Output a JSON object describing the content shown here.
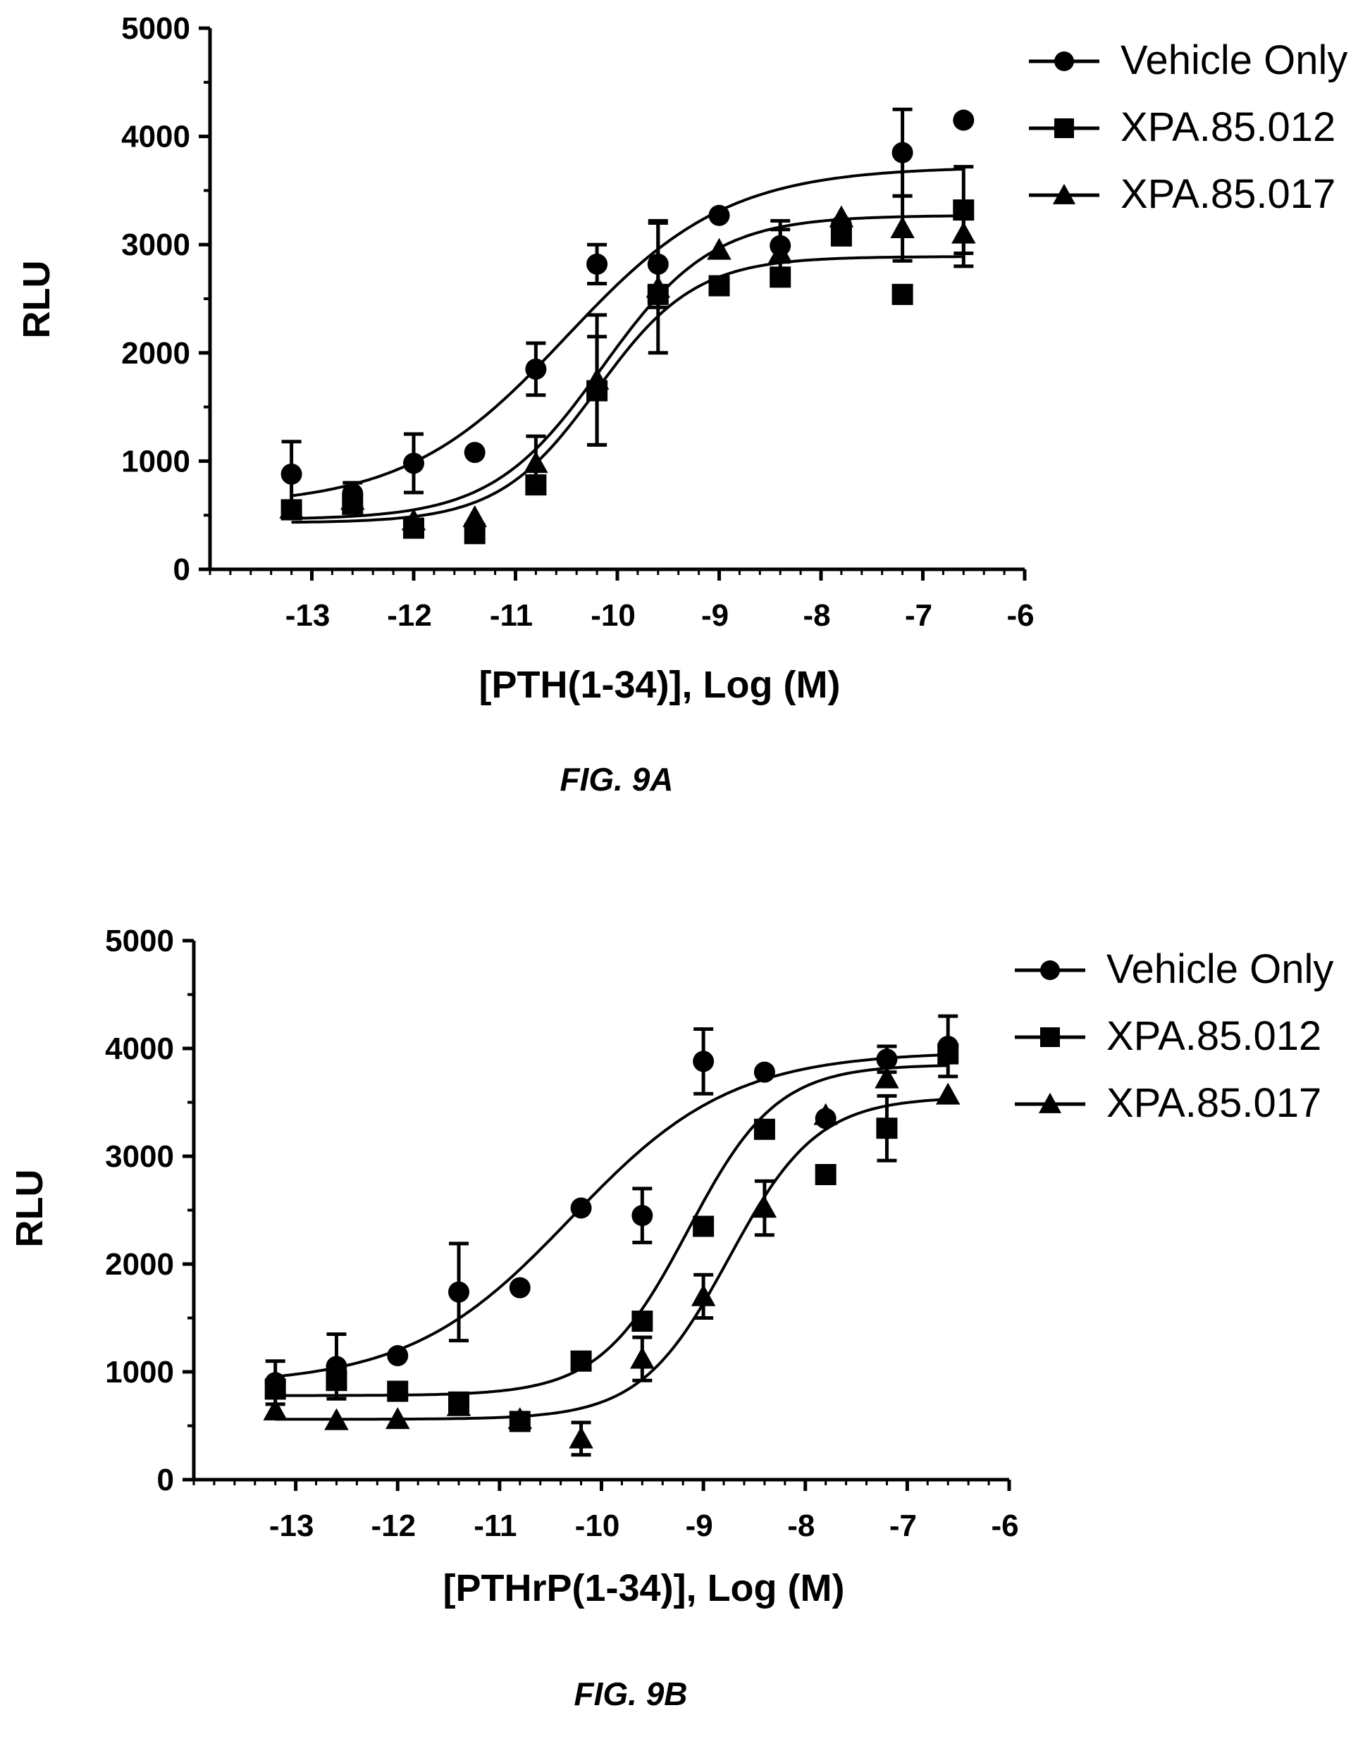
{
  "chart_data": [
    {
      "type": "scatter",
      "caption": "FIG. 9A",
      "xlabel": "[PTH(1-34)], Log (M)",
      "ylabel": "RLU",
      "xlim": [
        -14,
        -6
      ],
      "ylim": [
        0,
        5000
      ],
      "xticks": [
        -13,
        -12,
        -11,
        -10,
        -9,
        -8,
        -7,
        -6
      ],
      "yticks": [
        0,
        1000,
        2000,
        3000,
        4000,
        5000
      ],
      "grid": false,
      "legend": "top-right",
      "series": [
        {
          "name": "Vehicle Only",
          "marker": "circle",
          "x": [
            -13.2,
            -12.6,
            -12.0,
            -11.4,
            -10.8,
            -10.2,
            -9.6,
            -9.0,
            -8.4,
            -7.8,
            -7.2,
            -6.6
          ],
          "y": [
            880,
            700,
            980,
            1080,
            1850,
            2820,
            2820,
            3270,
            2990,
            3180,
            3850,
            4150
          ],
          "err": [
            300,
            100,
            270,
            0,
            240,
            180,
            400,
            0,
            150,
            0,
            400,
            0
          ],
          "fit": {
            "bottom": 580,
            "top": 3720,
            "ec50_log": -10.5,
            "hill": 0.55
          }
        },
        {
          "name": "XPA.85.012",
          "marker": "square",
          "x": [
            -13.2,
            -12.6,
            -12.0,
            -11.4,
            -10.8,
            -10.2,
            -9.6,
            -9.0,
            -8.4,
            -7.8,
            -7.2,
            -6.6
          ],
          "y": [
            550,
            600,
            380,
            330,
            780,
            1650,
            2540,
            2620,
            2700,
            3080,
            2540,
            3320
          ],
          "err": [
            0,
            0,
            0,
            0,
            0,
            500,
            0,
            0,
            0,
            0,
            0,
            400
          ],
          "fit": {
            "bottom": 460,
            "top": 3270,
            "ec50_log": -10.15,
            "hill": 0.8
          }
        },
        {
          "name": "XPA.85.017",
          "marker": "triangle",
          "x": [
            -13.2,
            -12.6,
            -12.0,
            -11.4,
            -10.8,
            -10.2,
            -9.6,
            -9.0,
            -8.4,
            -7.8,
            -7.2,
            -6.6
          ],
          "y": [
            560,
            640,
            450,
            480,
            980,
            1750,
            2600,
            2950,
            2920,
            3250,
            3150,
            3100
          ],
          "err": [
            0,
            0,
            0,
            0,
            250,
            600,
            600,
            0,
            300,
            0,
            300,
            300
          ],
          "fit": {
            "bottom": 430,
            "top": 2890,
            "ec50_log": -10.2,
            "hill": 0.9
          }
        }
      ]
    },
    {
      "type": "scatter",
      "caption": "FIG. 9B",
      "xlabel": "[PTHrP(1-34)], Log (M)",
      "ylabel": "RLU",
      "xlim": [
        -14,
        -6
      ],
      "ylim": [
        0,
        5000
      ],
      "xticks": [
        -13,
        -12,
        -11,
        -10,
        -9,
        -8,
        -7,
        -6
      ],
      "yticks": [
        0,
        1000,
        2000,
        3000,
        4000,
        5000
      ],
      "grid": false,
      "legend": "top-right",
      "series": [
        {
          "name": "Vehicle Only",
          "marker": "circle",
          "x": [
            -13.2,
            -12.6,
            -12.0,
            -11.4,
            -10.8,
            -10.2,
            -9.6,
            -9.0,
            -8.4,
            -7.8,
            -7.2,
            -6.6
          ],
          "y": [
            900,
            1050,
            1150,
            1740,
            1780,
            2520,
            2450,
            3880,
            3780,
            3350,
            3900,
            4020
          ],
          "err": [
            200,
            300,
            0,
            450,
            0,
            0,
            250,
            300,
            0,
            0,
            120,
            280
          ],
          "fit": {
            "bottom": 880,
            "top": 3970,
            "ec50_log": -10.3,
            "hill": 0.55
          }
        },
        {
          "name": "XPA.85.012",
          "marker": "square",
          "x": [
            -13.2,
            -12.6,
            -12.0,
            -11.4,
            -10.8,
            -10.2,
            -9.6,
            -9.0,
            -8.4,
            -7.8,
            -7.2,
            -6.6
          ],
          "y": [
            840,
            920,
            820,
            720,
            540,
            1100,
            1470,
            2350,
            3250,
            2830,
            3260,
            3950
          ],
          "err": [
            0,
            0,
            0,
            0,
            0,
            0,
            0,
            0,
            0,
            0,
            300,
            0
          ],
          "fit": {
            "bottom": 780,
            "top": 3850,
            "ec50_log": -9.15,
            "hill": 1.0
          }
        },
        {
          "name": "XPA.85.017",
          "marker": "triangle",
          "x": [
            -13.2,
            -12.6,
            -12.0,
            -11.4,
            -10.8,
            -10.2,
            -9.6,
            -9.0,
            -8.4,
            -7.8,
            -7.2,
            -6.6
          ],
          "y": [
            640,
            550,
            560,
            680,
            560,
            380,
            1120,
            1700,
            2520,
            3380,
            3720,
            3570
          ],
          "err": [
            0,
            0,
            0,
            0,
            0,
            150,
            200,
            200,
            250,
            0,
            0,
            0
          ],
          "fit": {
            "bottom": 560,
            "top": 3550,
            "ec50_log": -8.75,
            "hill": 1.0
          }
        }
      ]
    }
  ]
}
